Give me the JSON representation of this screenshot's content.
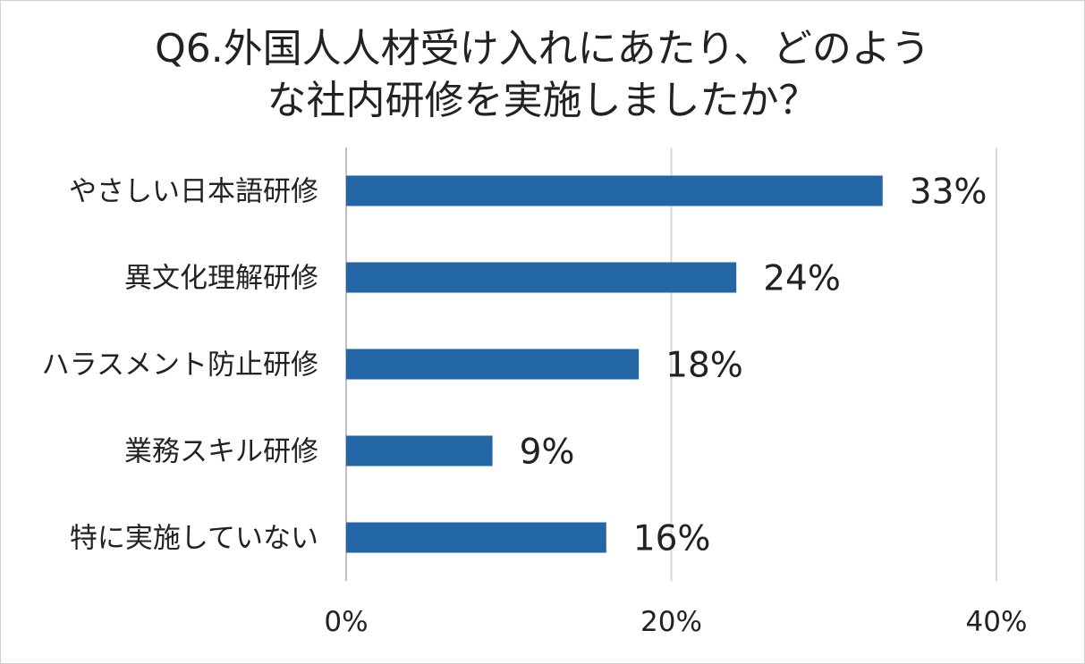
{
  "chart_data": {
    "type": "bar",
    "orientation": "horizontal",
    "title_lines": [
      "Q6.外国人人材受け入れにあたり、どのよう",
      "な社内研修を実施しましたか？"
    ],
    "categories": [
      "やさしい日本語研修",
      "異文化理解研修",
      "ハラスメント防止研修",
      "業務スキル研修",
      "特に実施していない"
    ],
    "values": [
      33,
      24,
      18,
      9,
      16
    ],
    "value_labels": [
      "33%",
      "24%",
      "18%",
      "9%",
      "16%"
    ],
    "xlim": [
      0,
      40
    ],
    "xticks": [
      0,
      20,
      40
    ],
    "xtick_labels": [
      "0%",
      "20%",
      "40%"
    ],
    "grid": true,
    "legend": "none",
    "bar_color": "#2266a6",
    "grid_color": "#d9d9d9"
  }
}
